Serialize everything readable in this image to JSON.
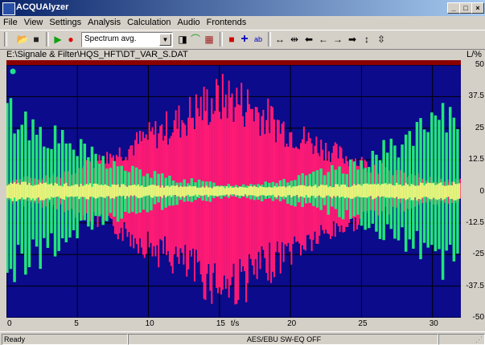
{
  "window": {
    "title": "ACQUAlyzer",
    "minimize": "_",
    "maximize": "□",
    "close": "×"
  },
  "menu": [
    "File",
    "View",
    "Settings",
    "Analysis",
    "Calculation",
    "Audio",
    "Frontends"
  ],
  "toolbar": {
    "combo_value": "Spectrum avg.",
    "icons": [
      {
        "name": "open-folder-icon",
        "glyph": "📂"
      },
      {
        "name": "save-icon",
        "glyph": "■"
      },
      {
        "name": "play-icon",
        "glyph": "▶"
      },
      {
        "name": "record-icon",
        "glyph": "●"
      },
      {
        "name": "properties-icon",
        "glyph": "◨"
      },
      {
        "name": "wave-icon",
        "glyph": "⌒"
      },
      {
        "name": "grid-icon",
        "glyph": "▦"
      },
      {
        "name": "color-square-icon",
        "glyph": "■"
      },
      {
        "name": "cursor-cross-icon",
        "glyph": "+"
      },
      {
        "name": "text-label-icon",
        "glyph": "ab"
      },
      {
        "name": "zoom-horizontal-expand-icon",
        "glyph": "↔"
      },
      {
        "name": "zoom-horizontal-compress-icon",
        "glyph": "⇹"
      },
      {
        "name": "arrow-left-bold-icon",
        "glyph": "⬅"
      },
      {
        "name": "arrow-left-icon",
        "glyph": "←"
      },
      {
        "name": "arrow-right-icon",
        "glyph": "→"
      },
      {
        "name": "arrow-right-bold-icon",
        "glyph": "➡"
      },
      {
        "name": "zoom-vertical-expand-icon",
        "glyph": "↕"
      },
      {
        "name": "zoom-vertical-compress-icon",
        "glyph": "⇳"
      }
    ]
  },
  "file_path": "E:\\Signale & Filter\\HQS_HFT\\DT_VAR_S.DAT",
  "unit_label": "L/%",
  "statusbar": {
    "left": "Ready",
    "mid": "AES/EBU  SW-EQ OFF"
  },
  "chart_data": {
    "type": "line",
    "xlabel": "t/s",
    "xlim": [
      0,
      32
    ],
    "ylim": [
      -50,
      50
    ],
    "x_ticks": [
      0,
      5,
      10,
      15,
      20,
      25,
      30
    ],
    "x_tick_labels": [
      "0",
      "5",
      "10",
      "15",
      "20",
      "25",
      "30"
    ],
    "y_ticks": [
      50,
      37.5,
      25,
      12.5,
      0,
      -12.5,
      -25,
      -37.5,
      -50
    ],
    "y_tick_labels": [
      "50",
      "37.5",
      "25",
      "12.5",
      "0",
      "-12.5",
      "-25",
      "-37.5",
      "-50"
    ],
    "grid": true,
    "colors": {
      "background": "#0b0b8c",
      "grid": "#000000"
    },
    "series": [
      {
        "color": "#ff1a75",
        "envelope_x": [
          0,
          4,
          8,
          12,
          14,
          15.5,
          17,
          20,
          24,
          28,
          32
        ],
        "envelope_amp": [
          5,
          8,
          20,
          35,
          44,
          48,
          44,
          30,
          17,
          8,
          5
        ]
      },
      {
        "color": "#22e57a",
        "envelope_x": [
          0,
          4,
          8,
          12,
          16,
          20,
          24,
          28,
          32
        ],
        "envelope_amp": [
          40,
          25,
          12,
          6,
          3,
          6,
          12,
          25,
          40
        ]
      },
      {
        "color": "#eef27a",
        "envelope_x": [
          0,
          8,
          16,
          24,
          32
        ],
        "envelope_amp": [
          4,
          3,
          2,
          3,
          4
        ]
      }
    ]
  }
}
